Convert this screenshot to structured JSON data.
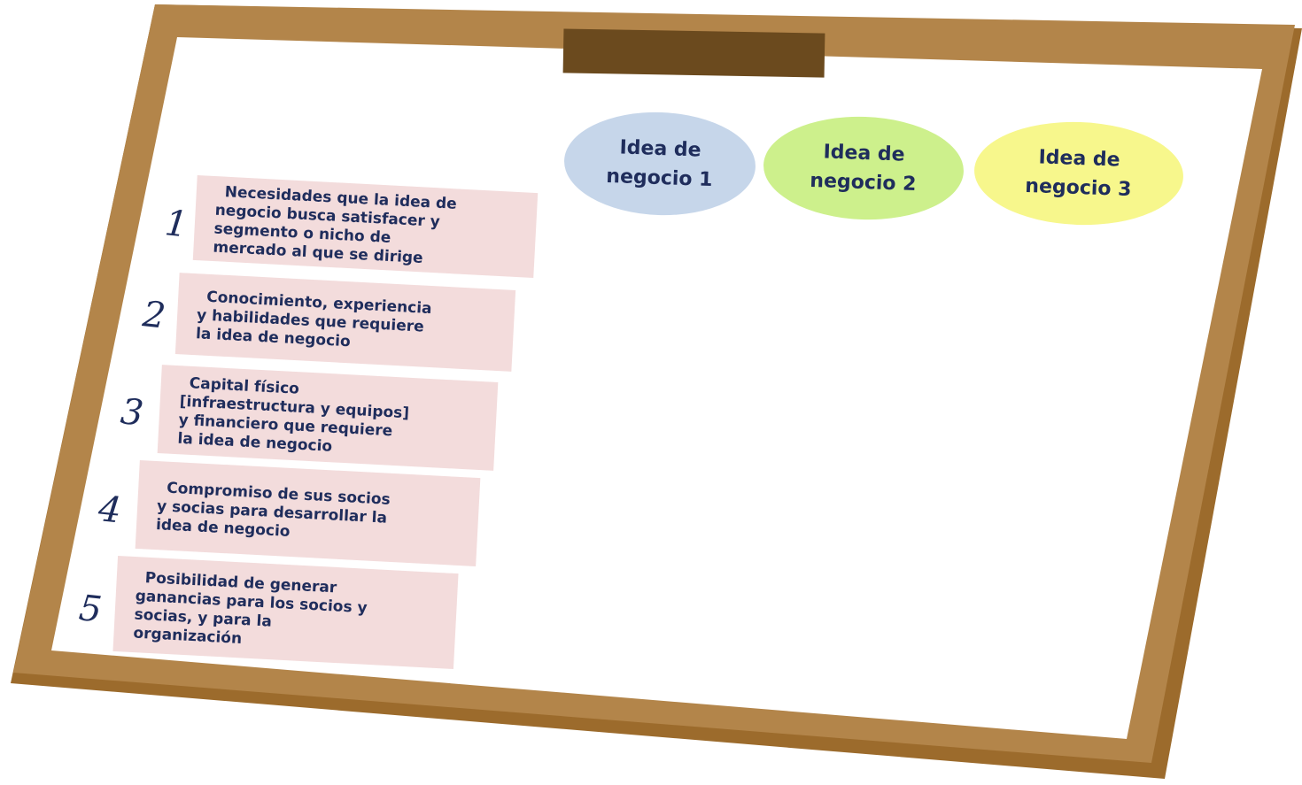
{
  "ideas": [
    {
      "lines": [
        "Idea de",
        "negocio 1"
      ]
    },
    {
      "lines": [
        "Idea de",
        "negocio 2"
      ]
    },
    {
      "lines": [
        "Idea de",
        "negocio 3"
      ]
    }
  ],
  "criteria": [
    {
      "number": "1",
      "lines": [
        "Necesidades que la idea de",
        "negocio busca satisfacer y",
        "segmento o nicho de",
        "mercado al que se dirige"
      ]
    },
    {
      "number": "2",
      "lines": [
        "Conocimiento, experiencia",
        "y habilidades que requiere",
        "la idea de negocio"
      ]
    },
    {
      "number": "3",
      "lines": [
        "Capital físico",
        "[infraestructura y equipos]",
        "y financiero que requiere",
        "la idea de negocio"
      ]
    },
    {
      "number": "4",
      "lines": [
        "Compromiso de sus socios",
        "y socias para desarrollar la",
        "idea de negocio"
      ]
    },
    {
      "number": "5",
      "lines": [
        "Posibilidad de generar",
        "ganancias para los socios y",
        "socias, y para la",
        "organización"
      ]
    }
  ]
}
